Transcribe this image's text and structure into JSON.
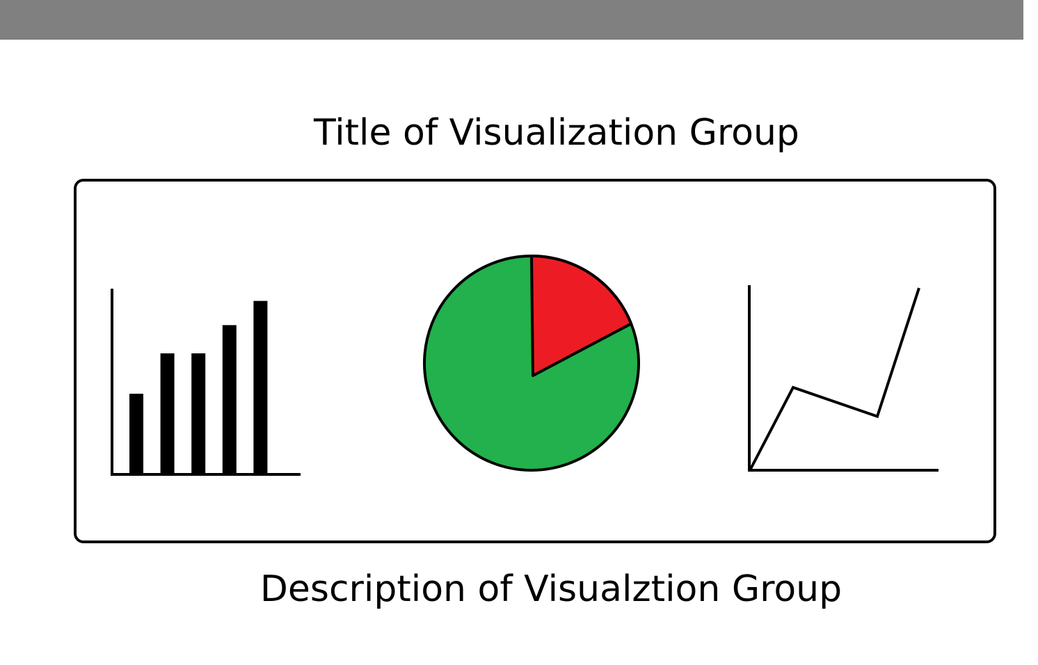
{
  "header": {
    "title": "Title of Visualization Group"
  },
  "footer": {
    "description": "Description of Visualztion Group"
  },
  "colors": {
    "top_bar": "#808080",
    "pie_major": "#22b14c",
    "pie_minor": "#ed1c24",
    "ink": "#000000"
  },
  "chart_data": [
    {
      "type": "bar",
      "values": [
        20,
        30,
        30,
        37,
        43
      ]
    },
    {
      "type": "pie",
      "values": [
        81,
        19
      ]
    },
    {
      "type": "line",
      "values": [
        0,
        45,
        29,
        100
      ]
    }
  ]
}
